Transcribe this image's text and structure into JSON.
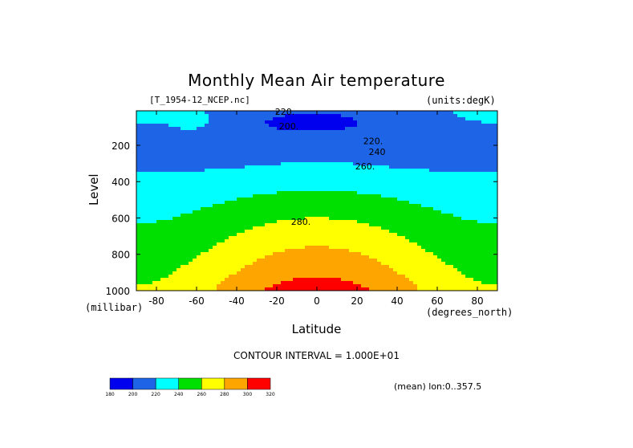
{
  "chart_data": {
    "type": "contour",
    "title": "Monthly Mean Air temperature",
    "file_label": "[T_1954-12_NCEP.nc]",
    "units_label": "(units:degK)",
    "xlabel": "Latitude",
    "ylabel": "Level",
    "x_unit": "(degrees_north)",
    "y_unit": "(millibar)",
    "xlim": [
      -90,
      90
    ],
    "ylim": [
      1000,
      10
    ],
    "y_inverted": true,
    "x_ticks": [
      -80,
      -60,
      -40,
      -20,
      0,
      20,
      40,
      60,
      80
    ],
    "y_ticks": [
      200,
      400,
      600,
      800,
      1000
    ],
    "contour_interval_label": "CONTOUR INTERVAL = 1.000E+01",
    "contour_interval": 10,
    "contour_labels": [
      {
        "text": "220.",
        "lat": -16,
        "level": 15
      },
      {
        "text": "200.",
        "lat": -14,
        "level": 95
      },
      {
        "text": "220.",
        "lat": 28,
        "level": 175
      },
      {
        "text": "240",
        "lat": 30,
        "level": 235
      },
      {
        "text": "260.",
        "lat": 24,
        "level": 315
      },
      {
        "text": "280.",
        "lat": -8,
        "level": 620
      }
    ],
    "color_levels": [
      180,
      200,
      220,
      240,
      260,
      280,
      300,
      320
    ],
    "color_bands": [
      {
        "lo": 180,
        "hi": 200,
        "color": "#0000ee"
      },
      {
        "lo": 200,
        "hi": 220,
        "color": "#1e64e6"
      },
      {
        "lo": 220,
        "hi": 240,
        "color": "#00ffff"
      },
      {
        "lo": 240,
        "hi": 260,
        "color": "#00e000"
      },
      {
        "lo": 260,
        "hi": 280,
        "color": "#ffff00"
      },
      {
        "lo": 280,
        "hi": 300,
        "color": "#ffa500"
      },
      {
        "lo": 300,
        "hi": 320,
        "color": "#ff0000"
      }
    ],
    "mean_label": "(mean) lon:0..357.5"
  }
}
